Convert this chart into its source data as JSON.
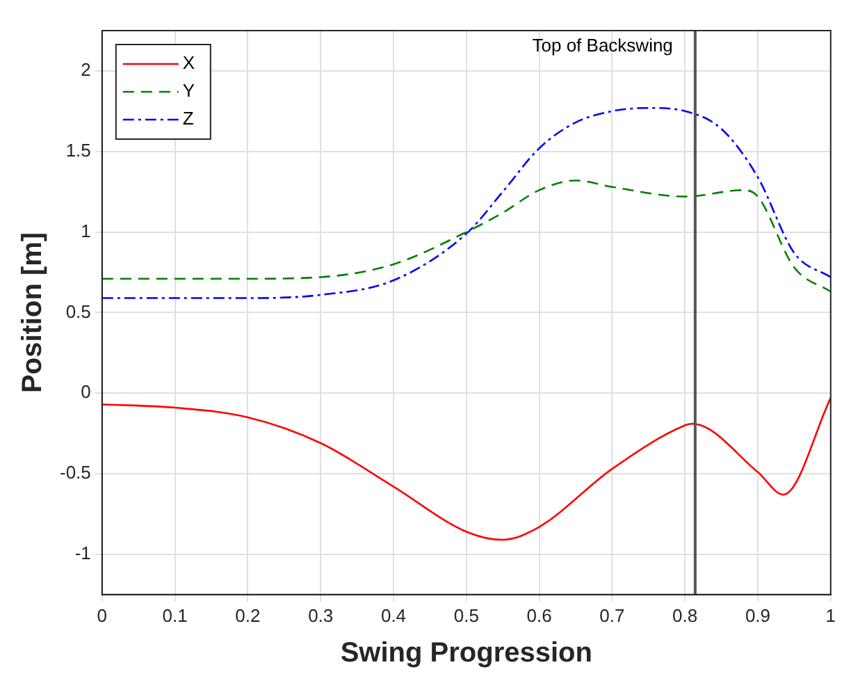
{
  "chart_data": {
    "type": "line",
    "xlabel": "Swing Progression",
    "ylabel": "Position [m]",
    "xlim": [
      0,
      1
    ],
    "xticks": [
      0,
      0.1,
      0.2,
      0.3,
      0.4,
      0.5,
      0.6,
      0.7,
      0.8,
      0.9,
      1
    ],
    "ylim": [
      -1.25,
      2.25
    ],
    "yticks": [
      -1,
      -0.5,
      0,
      0.5,
      1,
      1.5,
      2
    ],
    "grid": true,
    "legend": "top left",
    "marker": "none",
    "ref_lines": [
      {
        "axis": "x",
        "value": 0.814,
        "label": "Top of Backswing",
        "color": "#555555"
      }
    ],
    "series": [
      {
        "name": "X",
        "color": "#ff0000",
        "line_style": "solid",
        "x": [
          0,
          0.1,
          0.2,
          0.3,
          0.4,
          0.5,
          0.55,
          0.6,
          0.7,
          0.8,
          0.81,
          0.9,
          0.935,
          1
        ],
        "values": [
          -0.07,
          -0.09,
          -0.15,
          -0.31,
          -0.58,
          -0.86,
          -0.91,
          -0.83,
          -0.47,
          -0.2,
          -0.19,
          -0.49,
          -0.63,
          -0.03
        ]
      },
      {
        "name": "Y",
        "color": "#008000",
        "line_style": "dashed",
        "x": [
          0,
          0.1,
          0.2,
          0.3,
          0.4,
          0.5,
          0.55,
          0.6,
          0.65,
          0.7,
          0.8,
          0.88,
          0.9,
          0.95,
          1
        ],
        "values": [
          0.71,
          0.71,
          0.71,
          0.72,
          0.8,
          1.0,
          1.12,
          1.26,
          1.32,
          1.28,
          1.22,
          1.26,
          1.22,
          0.78,
          0.63
        ]
      },
      {
        "name": "Z",
        "color": "#0000ff",
        "line_style": "dotted",
        "x": [
          0,
          0.1,
          0.2,
          0.3,
          0.4,
          0.5,
          0.55,
          0.6,
          0.65,
          0.7,
          0.75,
          0.8,
          0.85,
          0.9,
          0.95,
          1
        ],
        "values": [
          0.59,
          0.59,
          0.59,
          0.61,
          0.7,
          0.99,
          1.25,
          1.52,
          1.68,
          1.75,
          1.77,
          1.75,
          1.64,
          1.34,
          0.87,
          0.72
        ]
      }
    ]
  }
}
